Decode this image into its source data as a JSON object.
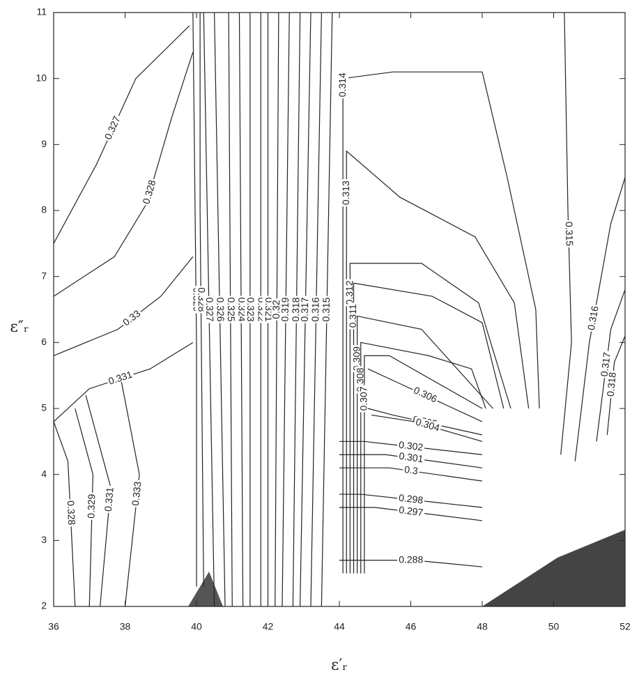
{
  "chart_data": {
    "type": "contour",
    "x_label": "ε′ᵣ",
    "y_label": "ε″ᵣ",
    "xlim": [
      36,
      52
    ],
    "ylim": [
      2,
      11
    ],
    "xticks": [
      36,
      38,
      40,
      42,
      44,
      46,
      48,
      50,
      52
    ],
    "yticks": [
      2,
      3,
      4,
      5,
      6,
      7,
      8,
      9,
      10,
      11
    ],
    "color": "#222222",
    "contours": [
      {
        "level": 0.327,
        "x": [
          36,
          37.2,
          38.3,
          39.8
        ],
        "y": [
          7.5,
          8.7,
          10,
          10.8
        ]
      },
      {
        "level": 0.328,
        "x": [
          36,
          37.7,
          38.6,
          39.3,
          39.9
        ],
        "y": [
          6.7,
          7.3,
          8.1,
          9.4,
          10.4
        ]
      },
      {
        "level": 0.33,
        "x": [
          36,
          37.8,
          39.0,
          39.9
        ],
        "y": [
          5.8,
          6.2,
          6.7,
          7.3
        ]
      },
      {
        "level": 0.331,
        "x": [
          36,
          37.0,
          38.7,
          39.9
        ],
        "y": [
          4.8,
          5.3,
          5.6,
          6.0
        ]
      },
      {
        "level": 0.328,
        "x": [
          36,
          36.4,
          36.6
        ],
        "y": [
          4.8,
          4.2,
          2
        ]
      },
      {
        "level": 0.329,
        "x": [
          36.6,
          37.1,
          37.0
        ],
        "y": [
          5.0,
          4.0,
          2
        ]
      },
      {
        "level": 0.331,
        "x": [
          36.9,
          37.6,
          37.3
        ],
        "y": [
          5.2,
          3.8,
          2
        ]
      },
      {
        "level": 0.333,
        "x": [
          37.9,
          38.4,
          38.0
        ],
        "y": [
          5.4,
          4.0,
          2
        ]
      },
      {
        "level": 0.329,
        "x": [
          39.9,
          40.0,
          40.0
        ],
        "y": [
          11,
          6,
          2.3
        ]
      },
      {
        "level": 0.328,
        "x": [
          40.1,
          40.1,
          40.2
        ],
        "y": [
          11,
          8,
          2.3
        ]
      },
      {
        "level": 0.327,
        "x": [
          40.2,
          40.35,
          40.5
        ],
        "y": [
          11,
          6.5,
          2
        ]
      },
      {
        "level": 0.326,
        "x": [
          40.5,
          40.65,
          40.8
        ],
        "y": [
          11,
          6.5,
          2
        ]
      },
      {
        "level": 0.325,
        "x": [
          40.9,
          40.95,
          41.0
        ],
        "y": [
          11,
          6.5,
          2
        ]
      },
      {
        "level": 0.324,
        "x": [
          41.2,
          41.25,
          41.3
        ],
        "y": [
          11,
          6.5,
          2
        ]
      },
      {
        "level": 0.323,
        "x": [
          41.5,
          41.5,
          41.5
        ],
        "y": [
          11,
          6.5,
          2
        ]
      },
      {
        "level": 0.322,
        "x": [
          41.8,
          41.8,
          41.8
        ],
        "y": [
          11,
          6.5,
          2
        ]
      },
      {
        "level": 0.321,
        "x": [
          42.0,
          42.0,
          42.0
        ],
        "y": [
          11,
          6.5,
          2
        ]
      },
      {
        "level": 0.32,
        "x": [
          42.3,
          42.25,
          42.2
        ],
        "y": [
          11,
          6.5,
          2
        ]
      },
      {
        "level": 0.319,
        "x": [
          42.6,
          42.5,
          42.4
        ],
        "y": [
          11,
          6.5,
          2
        ]
      },
      {
        "level": 0.318,
        "x": [
          42.9,
          42.8,
          42.7
        ],
        "y": [
          11,
          6.5,
          2
        ]
      },
      {
        "level": 0.317,
        "x": [
          43.2,
          43.05,
          42.9
        ],
        "y": [
          11,
          6.5,
          2
        ]
      },
      {
        "level": 0.316,
        "x": [
          43.5,
          43.35,
          43.2
        ],
        "y": [
          11,
          6.5,
          2
        ]
      },
      {
        "level": 0.315,
        "x": [
          43.8,
          43.65,
          43.5
        ],
        "y": [
          11,
          6.5,
          2
        ]
      },
      {
        "level": 0.314,
        "x": [
          44.1,
          44.1,
          45.5,
          48.0,
          48.7,
          49.5,
          49.6
        ],
        "y": [
          2.5,
          10.0,
          10.1,
          10.1,
          8.5,
          6.5,
          5
        ]
      },
      {
        "level": 0.313,
        "x": [
          44.2,
          44.2,
          45.7,
          47.8,
          48.9,
          49.3
        ],
        "y": [
          2.5,
          8.9,
          8.2,
          7.6,
          6.6,
          5
        ]
      },
      {
        "level": 0.312,
        "x": [
          44.3,
          44.3,
          46.3,
          47.9,
          48.8
        ],
        "y": [
          2.5,
          7.2,
          7.2,
          6.6,
          5
        ]
      },
      {
        "level": 0.311,
        "x": [
          44.4,
          44.4,
          46.6,
          48.0,
          48.6
        ],
        "y": [
          2.5,
          6.9,
          6.7,
          6.3,
          5
        ]
      },
      {
        "level": 0.309,
        "x": [
          44.5,
          44.5,
          46.3,
          48.3
        ],
        "y": [
          2.5,
          6.4,
          6.2,
          5
        ]
      },
      {
        "level": 0.308,
        "x": [
          44.6,
          44.6,
          46.5,
          47.7,
          48.1
        ],
        "y": [
          2.5,
          6.0,
          5.8,
          5.6,
          5
        ]
      },
      {
        "level": 0.307,
        "x": [
          44.7,
          44.7,
          45.4,
          48.0
        ],
        "y": [
          2.5,
          5.8,
          5.8,
          5.0
        ]
      },
      {
        "level": 0.306,
        "x": [
          44.8,
          45.6,
          48.0
        ],
        "y": [
          5.6,
          5.4,
          4.8
        ]
      },
      {
        "level": 0.305,
        "x": [
          44.8,
          45.5,
          48.0
        ],
        "y": [
          5.0,
          4.9,
          4.6
        ]
      },
      {
        "level": 0.304,
        "x": [
          44.9,
          46.1,
          48.0
        ],
        "y": [
          4.9,
          4.8,
          4.5
        ]
      },
      {
        "level": 0.302,
        "x": [
          44.0,
          44.7,
          48.0
        ],
        "y": [
          4.5,
          4.5,
          4.3
        ]
      },
      {
        "level": 0.301,
        "x": [
          44.0,
          45.3,
          48.0
        ],
        "y": [
          4.3,
          4.3,
          4.1
        ]
      },
      {
        "level": 0.3,
        "x": [
          44.0,
          45.4,
          48.0
        ],
        "y": [
          4.1,
          4.1,
          3.9
        ]
      },
      {
        "level": 0.298,
        "x": [
          44.0,
          44.6,
          48.0
        ],
        "y": [
          3.7,
          3.7,
          3.5
        ]
      },
      {
        "level": 0.297,
        "x": [
          44.0,
          45.0,
          48.0
        ],
        "y": [
          3.5,
          3.5,
          3.3
        ]
      },
      {
        "level": 0.288,
        "x": [
          44.0,
          46.1,
          48.0
        ],
        "y": [
          2.7,
          2.7,
          2.6
        ]
      },
      {
        "level": 0.315,
        "x": [
          50.3,
          50.4,
          50.5,
          50.2
        ],
        "y": [
          11,
          8,
          6.0,
          4.3
        ]
      },
      {
        "level": 0.316,
        "x": [
          52,
          51.6,
          51.0,
          50.6
        ],
        "y": [
          8.5,
          7.8,
          6,
          4.2
        ]
      },
      {
        "level": 0.317,
        "x": [
          52,
          51.6,
          51.2
        ],
        "y": [
          6.8,
          6.2,
          4.5
        ]
      },
      {
        "level": 0.318,
        "x": [
          52,
          51.7,
          51.5
        ],
        "y": [
          6.1,
          5.7,
          4.6
        ]
      }
    ]
  }
}
